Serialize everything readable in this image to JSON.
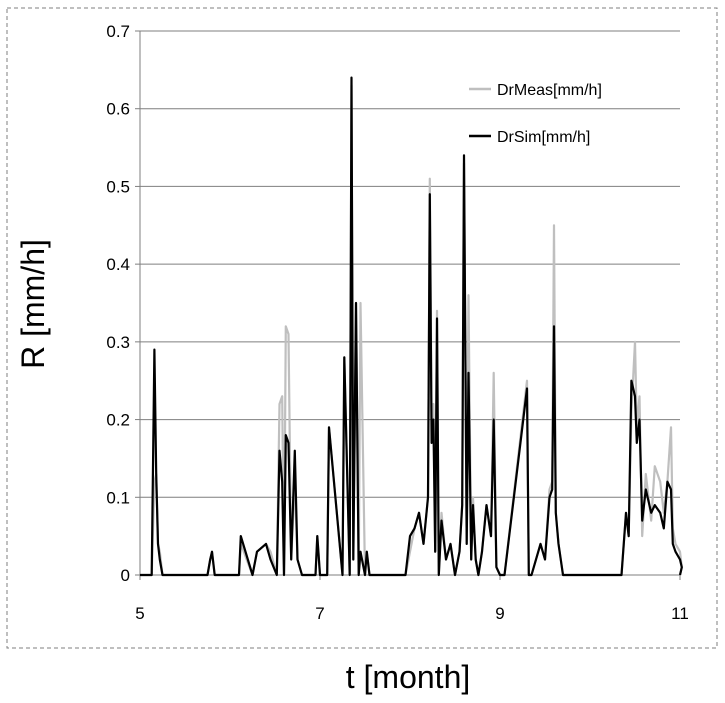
{
  "chart_data": {
    "type": "line",
    "title": "",
    "xlabel": "t [month]",
    "ylabel": "R [mm/h]",
    "xlim": [
      5,
      11
    ],
    "ylim": [
      0,
      0.7
    ],
    "xticks": [
      5,
      7,
      9,
      11
    ],
    "yticks": [
      0,
      0.1,
      0.2,
      0.3,
      0.4,
      0.5,
      0.6,
      0.7
    ],
    "ytick_labels": [
      "0",
      "0.1",
      "0.2",
      "0.3",
      "0.4",
      "0.5",
      "0.6",
      "0.7"
    ],
    "grid": "horizontal",
    "legend_position": "top-right",
    "series": [
      {
        "name": "DrMeas[mm/h]",
        "color": "#bfbfbf",
        "x": [
          5.13,
          5.16,
          5.18,
          5.2,
          5.22,
          5.25,
          5.3,
          5.75,
          5.78,
          5.8,
          5.83,
          6.1,
          6.12,
          6.25,
          6.3,
          6.4,
          6.45,
          6.52,
          6.55,
          6.58,
          6.6,
          6.62,
          6.65,
          6.68,
          6.72,
          6.75,
          6.8,
          6.95,
          6.97,
          7.0,
          7.08,
          7.1,
          7.25,
          7.27,
          7.33,
          7.35,
          7.37,
          7.4,
          7.43,
          7.45,
          7.5,
          7.52,
          7.55,
          7.95,
          8.0,
          8.05,
          8.1,
          8.15,
          8.2,
          8.22,
          8.24,
          8.26,
          8.28,
          8.3,
          8.32,
          8.35,
          8.4,
          8.45,
          8.5,
          8.55,
          8.58,
          8.6,
          8.63,
          8.65,
          8.68,
          8.7,
          8.73,
          8.76,
          8.8,
          8.85,
          8.9,
          8.93,
          8.96,
          9.0,
          9.05,
          9.3,
          9.32,
          9.35,
          9.45,
          9.5,
          9.55,
          9.58,
          9.6,
          9.62,
          9.65,
          9.7,
          9.8,
          10.35,
          10.4,
          10.43,
          10.46,
          10.5,
          10.52,
          10.55,
          10.58,
          10.62,
          10.68,
          10.72,
          10.78,
          10.82,
          10.86,
          10.9,
          10.92,
          10.95,
          11.0,
          11.02
        ],
        "values": [
          0,
          0.12,
          0.13,
          0.04,
          0.03,
          0.0,
          0,
          0,
          0.02,
          0.03,
          0,
          0,
          0.04,
          0,
          0.03,
          0.04,
          0.03,
          0.0,
          0.22,
          0.23,
          0,
          0.32,
          0.31,
          0.02,
          0.12,
          0.02,
          0,
          0,
          0.05,
          0,
          0.0,
          0.19,
          0,
          0.28,
          0,
          0.63,
          0.02,
          0.35,
          0.0,
          0.35,
          0,
          0.03,
          0,
          0,
          0.03,
          0.06,
          0.08,
          0.04,
          0.1,
          0.51,
          0.2,
          0.22,
          0.03,
          0.34,
          0.0,
          0.08,
          0.02,
          0.04,
          0.0,
          0.03,
          0.09,
          0.53,
          0.04,
          0.36,
          0.02,
          0.1,
          0.02,
          0.0,
          0.03,
          0.09,
          0.05,
          0.26,
          0.01,
          0,
          0,
          0.25,
          0,
          0.0,
          0.04,
          0.02,
          0.11,
          0.12,
          0.45,
          0.08,
          0.04,
          0.0,
          0,
          0,
          0.08,
          0.05,
          0.21,
          0.3,
          0.19,
          0.23,
          0.05,
          0.13,
          0.07,
          0.14,
          0.12,
          0.08,
          0.12,
          0.19,
          0.06,
          0.04,
          0.03,
          0.01
        ]
      },
      {
        "name": "DrSim[mm/h]",
        "color": "#000000",
        "x": [
          5.13,
          5.16,
          5.18,
          5.2,
          5.22,
          5.25,
          5.3,
          5.75,
          5.78,
          5.8,
          5.83,
          6.1,
          6.12,
          6.25,
          6.3,
          6.4,
          6.45,
          6.52,
          6.55,
          6.58,
          6.6,
          6.62,
          6.65,
          6.68,
          6.72,
          6.75,
          6.8,
          6.95,
          6.97,
          7.0,
          7.08,
          7.1,
          7.25,
          7.27,
          7.33,
          7.35,
          7.37,
          7.4,
          7.43,
          7.45,
          7.5,
          7.52,
          7.55,
          7.95,
          8.0,
          8.05,
          8.1,
          8.15,
          8.2,
          8.22,
          8.24,
          8.26,
          8.28,
          8.3,
          8.32,
          8.35,
          8.4,
          8.45,
          8.5,
          8.55,
          8.58,
          8.6,
          8.63,
          8.65,
          8.68,
          8.7,
          8.73,
          8.76,
          8.8,
          8.85,
          8.9,
          8.93,
          8.96,
          9.0,
          9.05,
          9.3,
          9.32,
          9.35,
          9.45,
          9.5,
          9.55,
          9.58,
          9.6,
          9.62,
          9.65,
          9.7,
          9.8,
          10.35,
          10.4,
          10.43,
          10.46,
          10.5,
          10.52,
          10.55,
          10.58,
          10.62,
          10.68,
          10.72,
          10.78,
          10.82,
          10.86,
          10.9,
          10.92,
          10.95,
          11.0,
          11.02
        ],
        "values": [
          0,
          0.29,
          0.13,
          0.04,
          0.02,
          0.0,
          0,
          0,
          0.02,
          0.03,
          0,
          0,
          0.05,
          0,
          0.03,
          0.04,
          0.02,
          0.0,
          0.16,
          0.12,
          0,
          0.18,
          0.17,
          0.02,
          0.16,
          0.02,
          0,
          0,
          0.05,
          0,
          0.0,
          0.19,
          0,
          0.28,
          0,
          0.64,
          0.02,
          0.35,
          0.0,
          0.03,
          0,
          0.03,
          0,
          0,
          0.05,
          0.06,
          0.08,
          0.04,
          0.1,
          0.49,
          0.17,
          0.2,
          0.03,
          0.33,
          0.0,
          0.07,
          0.02,
          0.04,
          0.0,
          0.03,
          0.09,
          0.54,
          0.04,
          0.26,
          0.02,
          0.09,
          0.02,
          0.0,
          0.03,
          0.09,
          0.05,
          0.2,
          0.01,
          0,
          0,
          0.24,
          0,
          0.0,
          0.04,
          0.02,
          0.1,
          0.11,
          0.32,
          0.08,
          0.04,
          0.0,
          0,
          0,
          0.08,
          0.05,
          0.25,
          0.23,
          0.17,
          0.2,
          0.07,
          0.11,
          0.08,
          0.09,
          0.08,
          0.06,
          0.12,
          0.11,
          0.04,
          0.03,
          0.02,
          0.01
        ]
      }
    ]
  }
}
